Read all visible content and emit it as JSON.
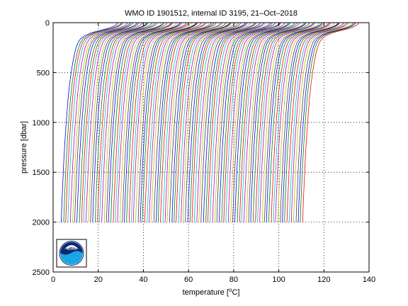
{
  "chart_data": {
    "type": "line",
    "title": "WMO ID 1901512, internal ID 3195, 21–Oct–2018",
    "xlabel_prefix": "temperature [",
    "xlabel_sup": "o",
    "xlabel_suffix": "C]",
    "ylabel": "pressure [dbar]",
    "xlim": [
      0,
      140
    ],
    "ylim": [
      0,
      2500
    ],
    "y_reversed": true,
    "grid": true,
    "x_ticks": [
      0,
      20,
      40,
      60,
      80,
      100,
      120,
      140
    ],
    "y_ticks": [
      0,
      500,
      1000,
      1500,
      2000,
      2500
    ],
    "x_tick_labels": [
      "0",
      "20",
      "40",
      "60",
      "80",
      "100",
      "120",
      "140"
    ],
    "y_tick_labels": [
      "0",
      "500",
      "1000",
      "1500",
      "2000",
      "2500"
    ],
    "profile_count": 108,
    "first_profile_offset": 0,
    "profile_offset_step": 1,
    "base_profile": {
      "pressure": [
        5,
        20,
        40,
        60,
        80,
        100,
        130,
        160,
        200,
        250,
        300,
        400,
        500,
        600,
        700,
        800,
        1000,
        1200,
        1400,
        1600,
        1800,
        2000
      ],
      "temperature": [
        28.6,
        28.0,
        26.5,
        24.0,
        20.5,
        17.0,
        14.0,
        12.2,
        11.0,
        10.2,
        9.6,
        8.7,
        8.0,
        7.4,
        6.9,
        6.5,
        5.8,
        5.2,
        4.7,
        4.3,
        3.9,
        3.6
      ]
    },
    "series_colors": [
      "#0000ff",
      "#008000",
      "#ff0000",
      "#00bfbf",
      "#bf00bf",
      "#bfbf00",
      "#404040"
    ],
    "logo": {
      "text": "NOAA",
      "colors": {
        "sky": "#0a2a6e",
        "wave": "#19a6e6",
        "ring": "#ffffff"
      }
    }
  }
}
